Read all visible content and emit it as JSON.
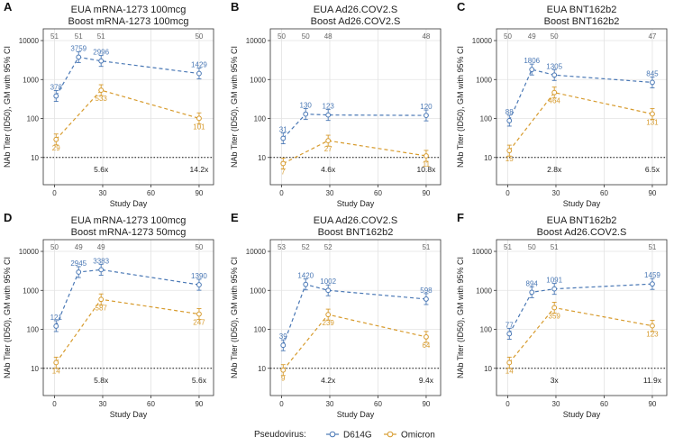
{
  "colors": {
    "d614g": "#4a78b5",
    "omicron": "#d79b2d",
    "grid": "#e3e3e3",
    "frame": "#333333"
  },
  "legend": {
    "title": "Pseudovirus:",
    "items": [
      "D614G",
      "Omicron"
    ]
  },
  "chart_data": [
    {
      "type": "line",
      "label": "A",
      "title_line1": "EUA mRNA-1273 100mcg",
      "title_line2": "Boost mRNA-1273 100mcg",
      "xlabel": "Study Day",
      "ylabel": "NAb Titer (ID50), GM with 95% CI",
      "x_ticks": [
        0,
        30,
        60,
        90
      ],
      "y_ticks": [
        10,
        100,
        1000,
        10000
      ],
      "y_tick_labels": [
        "10",
        "100",
        "1000",
        "10000"
      ],
      "ylim": [
        2,
        20000
      ],
      "xlim": [
        -7,
        99
      ],
      "reference_line": 10,
      "n_labels": [
        {
          "x": 0,
          "n": "51"
        },
        {
          "x": 15,
          "n": "51"
        },
        {
          "x": 29,
          "n": "51"
        },
        {
          "x": 90,
          "n": "50"
        }
      ],
      "series": [
        {
          "name": "D614G",
          "x": [
            1,
            15,
            29,
            90
          ],
          "values": [
            378,
            3759,
            2996,
            1429
          ],
          "labels": [
            "378",
            "3759",
            "2996",
            "1429"
          ]
        },
        {
          "name": "Omicron",
          "x": [
            1,
            29,
            90
          ],
          "values": [
            29,
            533,
            101
          ],
          "labels": [
            "29",
            "533",
            "101"
          ]
        }
      ],
      "ratios": [
        {
          "x": 29,
          "text": "5.6x"
        },
        {
          "x": 90,
          "text": "14.2x"
        }
      ]
    },
    {
      "type": "line",
      "label": "B",
      "title_line1": "EUA Ad26.COV2.S",
      "title_line2": "Boost Ad26.COV2.S",
      "xlabel": "Study Day",
      "ylabel": "NAb Titer (ID50), GM with 95% CI",
      "x_ticks": [
        0,
        30,
        60,
        90
      ],
      "y_ticks": [
        10,
        100,
        1000,
        10000
      ],
      "y_tick_labels": [
        "10",
        "100",
        "1000",
        "10000"
      ],
      "ylim": [
        2,
        20000
      ],
      "xlim": [
        -7,
        99
      ],
      "reference_line": 10,
      "n_labels": [
        {
          "x": 0,
          "n": "50"
        },
        {
          "x": 15,
          "n": "50"
        },
        {
          "x": 29,
          "n": "48"
        },
        {
          "x": 90,
          "n": "48"
        }
      ],
      "series": [
        {
          "name": "D614G",
          "x": [
            1,
            15,
            29,
            90
          ],
          "values": [
            31,
            130,
            123,
            120
          ],
          "labels": [
            "31",
            "130",
            "123",
            "120"
          ]
        },
        {
          "name": "Omicron",
          "x": [
            1,
            29,
            90
          ],
          "values": [
            7,
            27,
            11
          ],
          "labels": [
            "7",
            "27",
            "11"
          ]
        }
      ],
      "ratios": [
        {
          "x": 29,
          "text": "4.6x"
        },
        {
          "x": 90,
          "text": "10.8x"
        }
      ]
    },
    {
      "type": "line",
      "label": "C",
      "title_line1": "EUA BNT162b2",
      "title_line2": "Boost BNT162b2",
      "xlabel": "Study Day",
      "ylabel": "NAb Titer (ID50), GM with 95% CI",
      "x_ticks": [
        0,
        30,
        60,
        90
      ],
      "y_ticks": [
        10,
        100,
        1000,
        10000
      ],
      "y_tick_labels": [
        "10",
        "100",
        "1000",
        "10000"
      ],
      "ylim": [
        2,
        20000
      ],
      "xlim": [
        -7,
        99
      ],
      "reference_line": 10,
      "n_labels": [
        {
          "x": 0,
          "n": "50"
        },
        {
          "x": 15,
          "n": "49"
        },
        {
          "x": 29,
          "n": "50"
        },
        {
          "x": 90,
          "n": "47"
        }
      ],
      "series": [
        {
          "name": "D614G",
          "x": [
            1,
            15,
            29,
            90
          ],
          "values": [
            88,
            1806,
            1305,
            845
          ],
          "labels": [
            "88",
            "1806",
            "1305",
            "845"
          ]
        },
        {
          "name": "Omicron",
          "x": [
            1,
            29,
            90
          ],
          "values": [
            15,
            464,
            131
          ],
          "labels": [
            "15",
            "464",
            "131"
          ]
        }
      ],
      "ratios": [
        {
          "x": 29,
          "text": "2.8x"
        },
        {
          "x": 90,
          "text": "6.5x"
        }
      ]
    },
    {
      "type": "line",
      "label": "D",
      "title_line1": "EUA mRNA-1273 100mcg",
      "title_line2": "Boost mRNA-1273 50mcg",
      "xlabel": "Study Day",
      "ylabel": "NAb Titer (ID50), GM with 95% CI",
      "x_ticks": [
        0,
        30,
        60,
        90
      ],
      "y_ticks": [
        10,
        100,
        1000,
        10000
      ],
      "y_tick_labels": [
        "10",
        "100",
        "1000",
        "10000"
      ],
      "ylim": [
        2,
        20000
      ],
      "xlim": [
        -7,
        99
      ],
      "reference_line": 10,
      "n_labels": [
        {
          "x": 0,
          "n": "50"
        },
        {
          "x": 15,
          "n": "49"
        },
        {
          "x": 29,
          "n": "49"
        },
        {
          "x": 90,
          "n": "50"
        }
      ],
      "series": [
        {
          "name": "D614G",
          "x": [
            1,
            15,
            29,
            90
          ],
          "values": [
            121,
            2945,
            3383,
            1390
          ],
          "labels": [
            "121",
            "2945",
            "3383",
            "1390"
          ]
        },
        {
          "name": "Omicron",
          "x": [
            1,
            29,
            90
          ],
          "values": [
            14,
            587,
            247
          ],
          "labels": [
            "14",
            "587",
            "247"
          ]
        }
      ],
      "ratios": [
        {
          "x": 29,
          "text": "5.8x"
        },
        {
          "x": 90,
          "text": "5.6x"
        }
      ]
    },
    {
      "type": "line",
      "label": "E",
      "title_line1": "EUA Ad26.COV2.S",
      "title_line2": "Boost BNT162b2",
      "xlabel": "Study Day",
      "ylabel": "NAb Titer (ID50), GM with 95% CI",
      "x_ticks": [
        0,
        30,
        60,
        90
      ],
      "y_ticks": [
        10,
        100,
        1000,
        10000
      ],
      "y_tick_labels": [
        "10",
        "100",
        "1000",
        "10000"
      ],
      "ylim": [
        2,
        20000
      ],
      "xlim": [
        -7,
        99
      ],
      "reference_line": 10,
      "n_labels": [
        {
          "x": 0,
          "n": "53"
        },
        {
          "x": 15,
          "n": "52"
        },
        {
          "x": 29,
          "n": "52"
        },
        {
          "x": 90,
          "n": "51"
        }
      ],
      "series": [
        {
          "name": "D614G",
          "x": [
            1,
            15,
            29,
            90
          ],
          "values": [
            39,
            1420,
            1002,
            598
          ],
          "labels": [
            "39",
            "1420",
            "1002",
            "598"
          ]
        },
        {
          "name": "Omicron",
          "x": [
            1,
            29,
            90
          ],
          "values": [
            9,
            239,
            64
          ],
          "labels": [
            "9",
            "239",
            "64"
          ]
        }
      ],
      "ratios": [
        {
          "x": 29,
          "text": "4.2x"
        },
        {
          "x": 90,
          "text": "9.4x"
        }
      ]
    },
    {
      "type": "line",
      "label": "F",
      "title_line1": "EUA BNT162b2",
      "title_line2": "Boost Ad26.COV2.S",
      "xlabel": "Study Day",
      "ylabel": "NAb Titer (ID50), GM with 95% CI",
      "x_ticks": [
        0,
        30,
        60,
        90
      ],
      "y_ticks": [
        10,
        100,
        1000,
        10000
      ],
      "y_tick_labels": [
        "10",
        "100",
        "1000",
        "10000"
      ],
      "ylim": [
        2,
        20000
      ],
      "xlim": [
        -7,
        99
      ],
      "reference_line": 10,
      "n_labels": [
        {
          "x": 0,
          "n": "51"
        },
        {
          "x": 15,
          "n": "50"
        },
        {
          "x": 29,
          "n": "51"
        },
        {
          "x": 90,
          "n": "51"
        }
      ],
      "series": [
        {
          "name": "D614G",
          "x": [
            1,
            15,
            29,
            90
          ],
          "values": [
            77,
            894,
            1091,
            1459
          ],
          "labels": [
            "77",
            "894",
            "1091",
            "1459"
          ]
        },
        {
          "name": "Omicron",
          "x": [
            1,
            29,
            90
          ],
          "values": [
            14,
            359,
            123
          ],
          "labels": [
            "14",
            "359",
            "123"
          ]
        }
      ],
      "ratios": [
        {
          "x": 29,
          "text": "3x"
        },
        {
          "x": 90,
          "text": "11.9x"
        }
      ]
    }
  ]
}
